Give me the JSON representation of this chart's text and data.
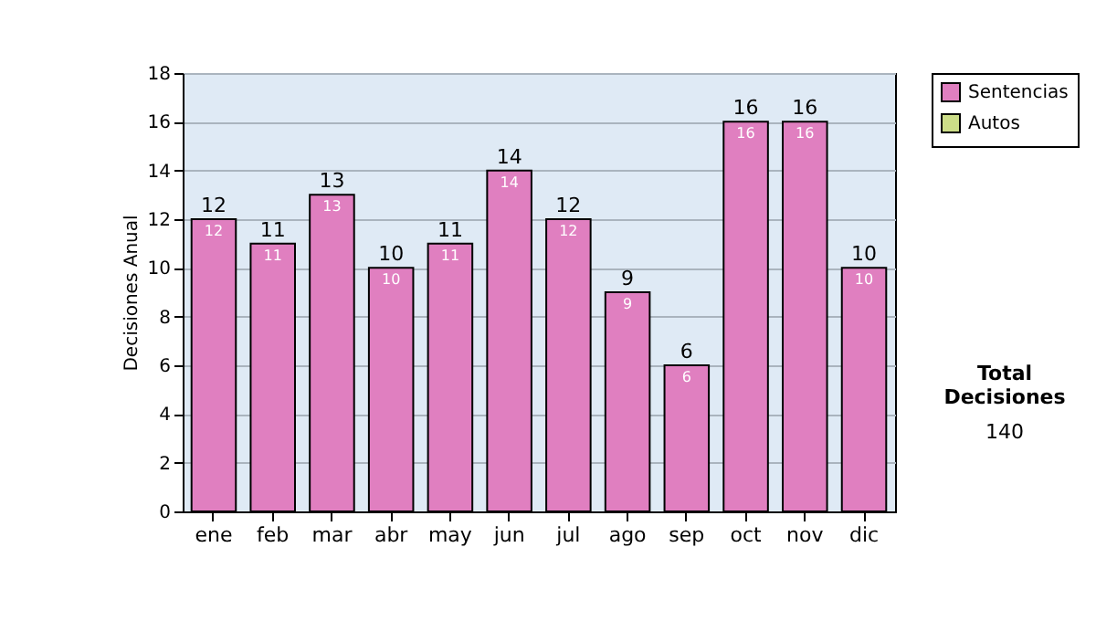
{
  "chart_data": {
    "type": "bar",
    "ylabel": "Decisiones Anual",
    "categories": [
      "ene",
      "feb",
      "mar",
      "abr",
      "may",
      "jun",
      "jul",
      "ago",
      "sep",
      "oct",
      "nov",
      "dic"
    ],
    "series": [
      {
        "name": "Sentencias",
        "color": "#e07fc0",
        "values": [
          12,
          11,
          13,
          10,
          11,
          14,
          12,
          9,
          6,
          16,
          16,
          10
        ]
      },
      {
        "name": "Autos",
        "color": "#ccdd88",
        "values": [
          null,
          null,
          null,
          null,
          null,
          null,
          null,
          null,
          null,
          null,
          null,
          null
        ]
      }
    ],
    "ylim": [
      0,
      18
    ],
    "yticks": [
      0,
      2,
      4,
      6,
      8,
      10,
      12,
      14,
      16,
      18
    ],
    "grid": "y",
    "legend": "right",
    "data_labels": true,
    "annotations": [
      "Total Decisiones",
      "140",
      {
        "text": "12",
        "x": "ene",
        "y": 12
      },
      {
        "text": "11",
        "x": "feb",
        "y": 11
      },
      {
        "text": "13",
        "x": "mar",
        "y": 13
      },
      {
        "text": "10",
        "x": "abr",
        "y": 10
      },
      {
        "text": "11",
        "x": "may",
        "y": 11
      },
      {
        "text": "14",
        "x": "jun",
        "y": 14
      },
      {
        "text": "12",
        "x": "jul",
        "y": 12
      },
      {
        "text": "9",
        "x": "ago",
        "y": 9
      },
      {
        "text": "6",
        "x": "sep",
        "y": 6
      },
      {
        "text": "16",
        "x": "oct",
        "y": 16
      },
      {
        "text": "16",
        "x": "nov",
        "y": 16
      },
      {
        "text": "10",
        "x": "dic",
        "y": 10
      }
    ]
  }
}
